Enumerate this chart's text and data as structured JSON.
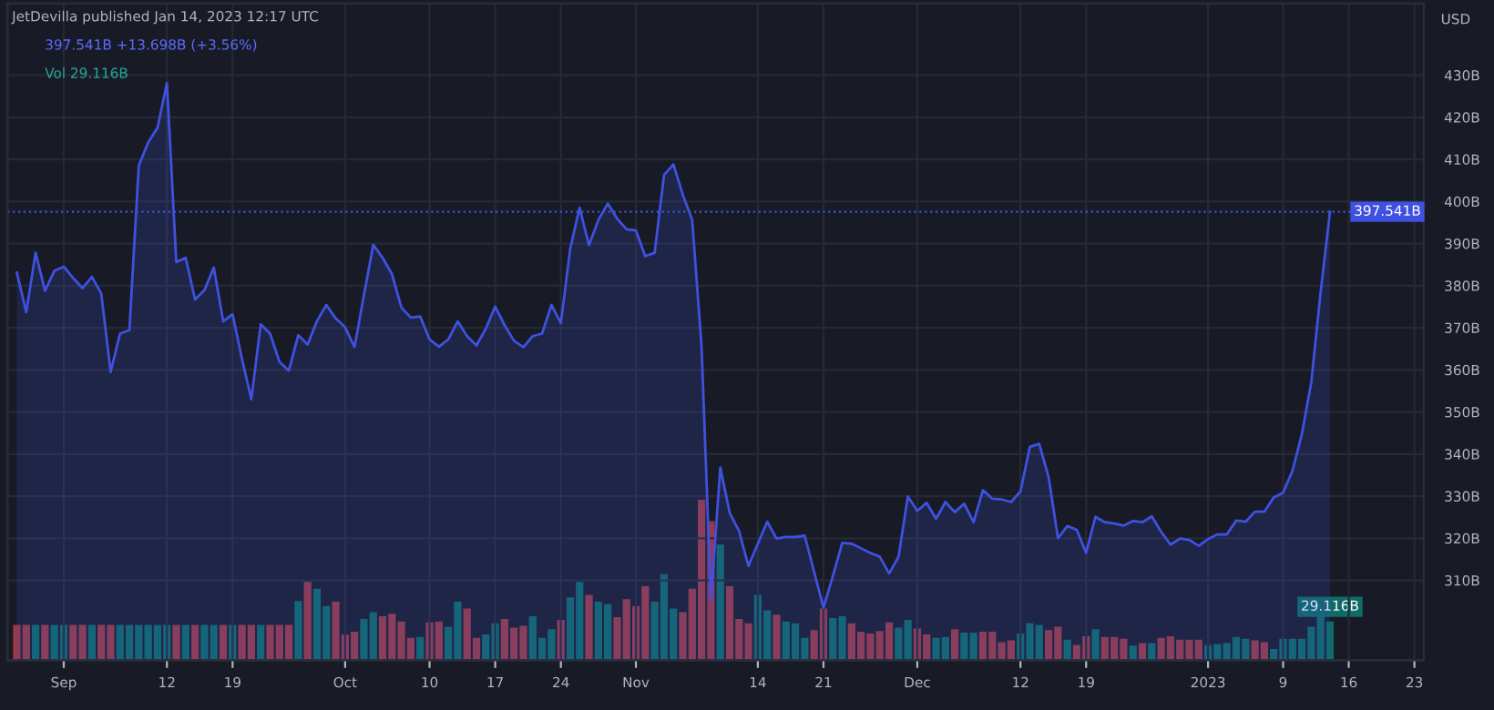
{
  "chart_data": {
    "type": "area",
    "title": "JetDevilla published Jan 14, 2023 12:17 UTC",
    "subtitle": "397.541B +13.698B (+3.56%)",
    "ylabel": "USD",
    "annotations": [
      "Vol 29.116B"
    ],
    "x": [
      "2022-08-27",
      "2022-08-28",
      "2022-08-29",
      "2022-08-30",
      "2022-08-31",
      "2022-09-01",
      "2022-09-02",
      "2022-09-03",
      "2022-09-04",
      "2022-09-05",
      "2022-09-06",
      "2022-09-07",
      "2022-09-08",
      "2022-09-09",
      "2022-09-10",
      "2022-09-11",
      "2022-09-12",
      "2022-09-13",
      "2022-09-14",
      "2022-09-15",
      "2022-09-16",
      "2022-09-17",
      "2022-09-18",
      "2022-09-19",
      "2022-09-20",
      "2022-09-21",
      "2022-09-22",
      "2022-09-23",
      "2022-09-24",
      "2022-09-25",
      "2022-09-26",
      "2022-09-27",
      "2022-09-28",
      "2022-09-29",
      "2022-09-30",
      "2022-10-01",
      "2022-10-02",
      "2022-10-03",
      "2022-10-04",
      "2022-10-05",
      "2022-10-06",
      "2022-10-07",
      "2022-10-08",
      "2022-10-09",
      "2022-10-10",
      "2022-10-11",
      "2022-10-12",
      "2022-10-13",
      "2022-10-14",
      "2022-10-15",
      "2022-10-16",
      "2022-10-17",
      "2022-10-18",
      "2022-10-19",
      "2022-10-20",
      "2022-10-21",
      "2022-10-22",
      "2022-10-23",
      "2022-10-24",
      "2022-10-25",
      "2022-10-26",
      "2022-10-27",
      "2022-10-28",
      "2022-10-29",
      "2022-10-30",
      "2022-10-31",
      "2022-11-01",
      "2022-11-02",
      "2022-11-03",
      "2022-11-04",
      "2022-11-05",
      "2022-11-06",
      "2022-11-07",
      "2022-11-08",
      "2022-11-09",
      "2022-11-10",
      "2022-11-11",
      "2022-11-12",
      "2022-11-13",
      "2022-11-14",
      "2022-11-15",
      "2022-11-16",
      "2022-11-17",
      "2022-11-18",
      "2022-11-19",
      "2022-11-20",
      "2022-11-21",
      "2022-11-22",
      "2022-11-23",
      "2022-11-24",
      "2022-11-25",
      "2022-11-26",
      "2022-11-27",
      "2022-11-28",
      "2022-11-29",
      "2022-11-30",
      "2022-12-01",
      "2022-12-02",
      "2022-12-03",
      "2022-12-04",
      "2022-12-05",
      "2022-12-06",
      "2022-12-07",
      "2022-12-08",
      "2022-12-09",
      "2022-12-10",
      "2022-12-11",
      "2022-12-12",
      "2022-12-13",
      "2022-12-14",
      "2022-12-15",
      "2022-12-16",
      "2022-12-17",
      "2022-12-18",
      "2022-12-19",
      "2022-12-20",
      "2022-12-21",
      "2022-12-22",
      "2022-12-23",
      "2022-12-24",
      "2022-12-25",
      "2022-12-26",
      "2022-12-27",
      "2022-12-28",
      "2022-12-29",
      "2022-12-30",
      "2022-12-31",
      "2023-01-01",
      "2023-01-02",
      "2023-01-03",
      "2023-01-04",
      "2023-01-05",
      "2023-01-06",
      "2023-01-07",
      "2023-01-08",
      "2023-01-09",
      "2023-01-10",
      "2023-01-11",
      "2023-01-12",
      "2023-01-13",
      "2023-01-14"
    ],
    "series": [
      {
        "axis": "y",
        "color": "#3f51e0",
        "values": [
          383.1,
          373.7,
          387.8,
          378.8,
          383.5,
          384.5,
          381.8,
          379.4,
          382.1,
          378.1,
          359.5,
          368.6,
          369.4,
          408.5,
          414,
          417.5,
          428.1,
          385.6,
          386.6,
          376.7,
          378.9,
          384.3,
          371.5,
          373.2,
          362.6,
          353,
          370.8,
          368.6,
          361.9,
          359.8,
          368.2,
          366,
          371.6,
          375.4,
          372.2,
          370.1,
          365.4,
          377.7,
          389.7,
          386.6,
          382.7,
          374.8,
          372.4,
          372.7,
          367.2,
          365.5,
          367.2,
          371.5,
          368,
          365.8,
          369.8,
          375,
          370.6,
          366.9,
          365.4,
          368,
          368.6,
          375.4,
          371.1,
          388.8,
          398.5,
          389.6,
          395.6,
          399.5,
          395.9,
          393.4,
          393.1,
          387,
          387.8,
          406.3,
          408.8,
          401.6,
          395.6,
          365.5,
          305.3,
          336.8,
          326,
          321.7,
          313.4,
          318.7,
          323.9,
          319.9,
          320.3,
          320.3,
          320.6,
          312,
          303.5,
          311,
          318.9,
          318.7,
          317.6,
          316.5,
          315.6,
          311.6,
          315.6,
          329.9,
          326.5,
          328.4,
          324.6,
          328.6,
          326.2,
          328.2,
          323.8,
          331.4,
          329.4,
          329.2,
          328.6,
          331.1,
          341.7,
          342.4,
          334.5,
          320,
          322.9,
          322,
          316.5,
          325.1,
          323.8,
          323.5,
          323,
          324.1,
          323.8,
          325.2,
          321.5,
          318.5,
          319.9,
          319.6,
          318.2,
          319.8,
          320.9,
          320.9,
          324.2,
          323.9,
          326.3,
          326.3,
          329.7,
          330.8,
          336,
          344.7,
          356.9,
          378.4,
          397.5
        ]
      },
      {
        "type": "bar",
        "axis": "y2",
        "values": [
          26.5,
          26.5,
          26.5,
          26.5,
          26.5,
          26.5,
          26.5,
          26.5,
          26.5,
          26.5,
          26.5,
          26.5,
          26.5,
          26.5,
          26.5,
          26.5,
          26.5,
          26.5,
          26.5,
          26.5,
          26.5,
          26.5,
          26.5,
          26.5,
          26.5,
          26.5,
          26.5,
          26.5,
          26.5,
          26.5,
          44.6,
          58.9,
          53.7,
          40.8,
          44,
          19.4,
          21.4,
          31.1,
          36.2,
          33,
          34.9,
          29.1,
          16.8,
          17.5,
          28.5,
          29.1,
          25.2,
          44,
          38.8,
          16.8,
          19.4,
          27.8,
          31.1,
          24.6,
          25.9,
          33,
          16.8,
          23.3,
          30.4,
          47.2,
          58.9,
          49.2,
          44,
          42.1,
          32.4,
          45.9,
          40.8,
          55.6,
          44,
          64.7,
          38.8,
          36.2,
          53.7,
          120.5,
          104.4,
          86.9,
          55.6,
          31.1,
          27.8,
          49.2,
          37.5,
          34.3,
          29.1,
          27.8,
          16.8,
          22.6,
          38.8,
          31.7,
          33,
          27.8,
          21.4,
          20.1,
          22,
          28.5,
          24.6,
          30.4,
          23.9,
          19.4,
          16.8,
          17.5,
          23.3,
          20.7,
          20.7,
          21.4,
          21.4,
          13.6,
          14.9,
          20.1,
          27.8,
          26.5,
          22.6,
          25.2,
          15.5,
          11.6,
          18.1,
          23.3,
          17.5,
          17.5,
          16.2,
          11,
          12.9,
          12.9,
          16.8,
          18.1,
          15.5,
          15.5,
          15.5,
          11.6,
          12.3,
          12.9,
          17.5,
          16.2,
          14.9,
          13.6,
          8.4,
          16.2,
          16.2,
          16.2,
          25.2,
          33,
          29.116
        ],
        "colors": [
          "#9b3a42",
          "#9b3a42",
          "#0e6b66",
          "#9b3a42",
          "#0e6b66",
          "#0e6b66",
          "#9b3a42",
          "#9b3a42",
          "#0e6b66",
          "#9b3a42",
          "#9b3a42",
          "#0e6b66",
          "#0e6b66",
          "#0e6b66",
          "#0e6b66",
          "#0e6b66",
          "#0e6b66",
          "#9b3a42",
          "#0e6b66",
          "#9b3a42",
          "#0e6b66",
          "#0e6b66",
          "#9b3a42",
          "#0e6b66",
          "#9b3a42",
          "#9b3a42",
          "#0e6b66",
          "#9b3a42",
          "#9b3a42",
          "#9b3a42",
          "#0e6b66",
          "#9b3a42",
          "#0e6b66",
          "#0e6b66",
          "#9b3a42",
          "#9b3a42",
          "#9b3a42",
          "#0e6b66",
          "#0e6b66",
          "#9b3a42",
          "#9b3a42",
          "#9b3a42",
          "#9b3a42",
          "#0e6b66",
          "#9b3a42",
          "#9b3a42",
          "#0e6b66",
          "#0e6b66",
          "#9b3a42",
          "#9b3a42",
          "#0e6b66",
          "#0e6b66",
          "#9b3a42",
          "#9b3a42",
          "#9b3a42",
          "#0e6b66",
          "#0e6b66",
          "#0e6b66",
          "#9b3a42",
          "#0e6b66",
          "#0e6b66",
          "#9b3a42",
          "#0e6b66",
          "#0e6b66",
          "#9b3a42",
          "#9b3a42",
          "#9b3a42",
          "#9b3a42",
          "#0e6b66",
          "#0e6b66",
          "#0e6b66",
          "#9b3a42",
          "#9b3a42",
          "#9b3a42",
          "#9b3a42",
          "#0e6b66",
          "#9b3a42",
          "#9b3a42",
          "#9b3a42",
          "#0e6b66",
          "#0e6b66",
          "#9b3a42",
          "#0e6b66",
          "#0e6b66",
          "#0e6b66",
          "#9b3a42",
          "#9b3a42",
          "#0e6b66",
          "#0e6b66",
          "#9b3a42",
          "#9b3a42",
          "#9b3a42",
          "#9b3a42",
          "#9b3a42",
          "#0e6b66",
          "#0e6b66",
          "#9b3a42",
          "#9b3a42",
          "#0e6b66",
          "#0e6b66",
          "#9b3a42",
          "#0e6b66",
          "#0e6b66",
          "#9b3a42",
          "#9b3a42",
          "#9b3a42",
          "#9b3a42",
          "#0e6b66",
          "#0e6b66",
          "#0e6b66",
          "#9b3a42",
          "#9b3a42",
          "#0e6b66",
          "#9b3a42",
          "#9b3a42",
          "#0e6b66",
          "#9b3a42",
          "#9b3a42",
          "#9b3a42",
          "#0e6b66",
          "#9b3a42",
          "#0e6b66",
          "#9b3a42",
          "#9b3a42",
          "#9b3a42",
          "#9b3a42",
          "#9b3a42",
          "#0e6b66",
          "#0e6b66",
          "#0e6b66",
          "#0e6b66",
          "#0e6b66",
          "#9b3a42",
          "#9b3a42",
          "#0e6b66",
          "#0e6b66",
          "#0e6b66",
          "#0e6b66",
          "#0e6b66",
          "#0e6b66",
          "#0e6b66"
        ],
        "value_labels": [
          null,
          null,
          null,
          null,
          null,
          null,
          null,
          null,
          null,
          null,
          null,
          null,
          null,
          null,
          null,
          null,
          null,
          null,
          null,
          null,
          null,
          null,
          null,
          null,
          null,
          null,
          null,
          null,
          null,
          null,
          null,
          null,
          null,
          null,
          null,
          null,
          null,
          null,
          null,
          null,
          null,
          null,
          null,
          null,
          null,
          null,
          null,
          null,
          null,
          null,
          null,
          null,
          null,
          null,
          null,
          null,
          null,
          null,
          null,
          null,
          null,
          null,
          null,
          null,
          null,
          null,
          null,
          null,
          null,
          null,
          null,
          null,
          null,
          null,
          null,
          null,
          null,
          null,
          null,
          null,
          null,
          null,
          null,
          null,
          null,
          null,
          null,
          null,
          null,
          null,
          null,
          null,
          null,
          null,
          null,
          null,
          null,
          null,
          null,
          null,
          null,
          null,
          null,
          null,
          null,
          null,
          null,
          null,
          null,
          null,
          null,
          null,
          null,
          null,
          null,
          null,
          null,
          null,
          null,
          null,
          null,
          null,
          null,
          null,
          null,
          null,
          null,
          null,
          null,
          null,
          null,
          null,
          null,
          null,
          null,
          null,
          null,
          null,
          null,
          null,
          "29.116B"
        ]
      }
    ],
    "ylim": [
      291,
      447
    ],
    "yticks": [
      {
        "value": 310,
        "label": "310B"
      },
      {
        "value": 320,
        "label": "320B"
      },
      {
        "value": 330,
        "label": "330B"
      },
      {
        "value": 340,
        "label": "340B"
      },
      {
        "value": 350,
        "label": "350B"
      },
      {
        "value": 360,
        "label": "360B"
      },
      {
        "value": 370,
        "label": "370B"
      },
      {
        "value": 380,
        "label": "380B"
      },
      {
        "value": 390,
        "label": "390B"
      },
      {
        "value": 400,
        "label": "400B"
      },
      {
        "value": 410,
        "label": "410B"
      },
      {
        "value": 420,
        "label": "420B"
      },
      {
        "value": 430,
        "label": "430B"
      }
    ],
    "y2lim": [
      0,
      493
    ],
    "xlim": [
      "2022-08-26",
      "2023-01-24"
    ],
    "xticks": [
      {
        "value": "2022-09-01",
        "label": "Sep"
      },
      {
        "value": "2022-09-12",
        "label": "12"
      },
      {
        "value": "2022-09-19",
        "label": "19"
      },
      {
        "value": "2022-10-01",
        "label": "Oct"
      },
      {
        "value": "2022-10-10",
        "label": "10"
      },
      {
        "value": "2022-10-17",
        "label": "17"
      },
      {
        "value": "2022-10-24",
        "label": "24"
      },
      {
        "value": "2022-11-01",
        "label": "Nov"
      },
      {
        "value": "2022-11-14",
        "label": "14"
      },
      {
        "value": "2022-11-21",
        "label": "21"
      },
      {
        "value": "2022-12-01",
        "label": "Dec"
      },
      {
        "value": "2022-12-12",
        "label": "12"
      },
      {
        "value": "2022-12-19",
        "label": "19"
      },
      {
        "value": "2023-01-01",
        "label": "2023"
      },
      {
        "value": "2023-01-09",
        "label": "9"
      },
      {
        "value": "2023-01-16",
        "label": "16"
      },
      {
        "value": "2023-01-23",
        "label": "23"
      }
    ],
    "ref_lines": [
      {
        "axis": "y",
        "value": 397.541,
        "label": "397.541B",
        "color": "#3f51e0",
        "line_style": "dotted"
      }
    ],
    "tick_labels": "xy",
    "grid": true,
    "line_style": "solid",
    "marker": "none"
  }
}
